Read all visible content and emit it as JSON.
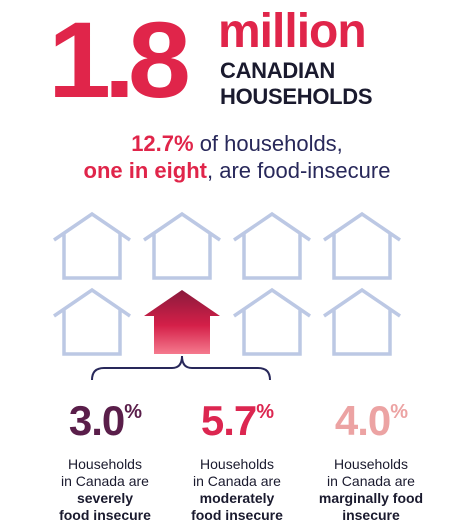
{
  "colors": {
    "accent": "#e0254a",
    "dark": "#1a1a2e",
    "navy": "#28285a",
    "house_outline": "#bcc8e4",
    "severe": "#5a1e4a",
    "moderate": "#dc2650",
    "marginal": "#eca3a3"
  },
  "hero": {
    "number": "1.8",
    "unit": "million",
    "line1": "CANADIAN",
    "line2": "HOUSEHOLDS"
  },
  "headline": {
    "line1_bold": "12.7%",
    "line1_rest": " of households,",
    "line2_bold": "one in eight",
    "line2_rest": ", are food-insecure"
  },
  "houses": {
    "total": 8,
    "highlighted_index": 5,
    "icon": "house-outline-icon"
  },
  "stats": [
    {
      "value": "3.0",
      "suffix": "%",
      "line1": "Households",
      "line2": "in Canada are",
      "line3": "severely",
      "line4": "food insecure"
    },
    {
      "value": "5.7",
      "suffix": "%",
      "line1": "Households",
      "line2": "in Canada are",
      "line3": "moderately",
      "line4": "food insecure"
    },
    {
      "value": "4.0",
      "suffix": "%",
      "line1": "Households",
      "line2": "in Canada are",
      "line3": "marginally food",
      "line4": "insecure"
    }
  ]
}
